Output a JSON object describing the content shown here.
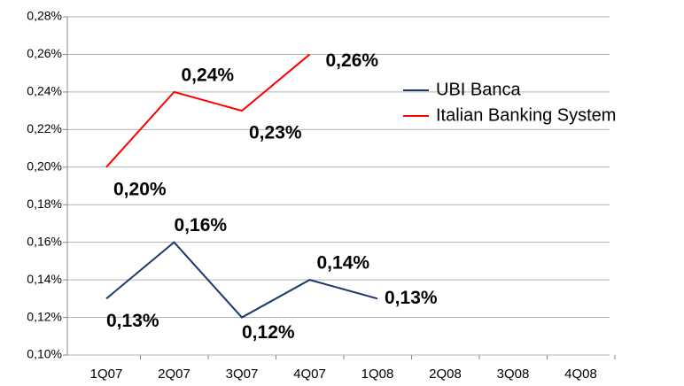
{
  "chart_data": {
    "type": "line",
    "categories": [
      "1Q07",
      "2Q07",
      "3Q07",
      "4Q07",
      "1Q08",
      "2Q08",
      "3Q08",
      "4Q08"
    ],
    "series": [
      {
        "name": "UBI Banca",
        "color": "#1a3a6b",
        "values": [
          0.13,
          0.16,
          0.12,
          0.14,
          0.13,
          null,
          null,
          null
        ],
        "value_labels": [
          "0,13%",
          "0,16%",
          "0,12%",
          "0,14%",
          "0,13%",
          null,
          null,
          null
        ]
      },
      {
        "name": "Italian Banking System",
        "color": "#ff0000",
        "values": [
          0.2,
          0.24,
          0.23,
          0.26,
          null,
          null,
          null,
          null
        ],
        "value_labels": [
          "0,20%",
          "0,24%",
          "0,23%",
          "0,26%",
          null,
          null,
          null,
          null
        ]
      }
    ],
    "ylim": [
      0.1,
      0.28
    ],
    "yticks": [
      {
        "value": 0.1,
        "label": "0,10%"
      },
      {
        "value": 0.12,
        "label": "0,12%"
      },
      {
        "value": 0.14,
        "label": "0,14%"
      },
      {
        "value": 0.16,
        "label": "0,16%"
      },
      {
        "value": 0.18,
        "label": "0,18%"
      },
      {
        "value": 0.2,
        "label": "0,20%"
      },
      {
        "value": 0.22,
        "label": "0,22%"
      },
      {
        "value": 0.24,
        "label": "0,24%"
      },
      {
        "value": 0.26,
        "label": "0,26%"
      },
      {
        "value": 0.28,
        "label": "0,28%"
      }
    ],
    "grid": true,
    "legend": "right"
  }
}
